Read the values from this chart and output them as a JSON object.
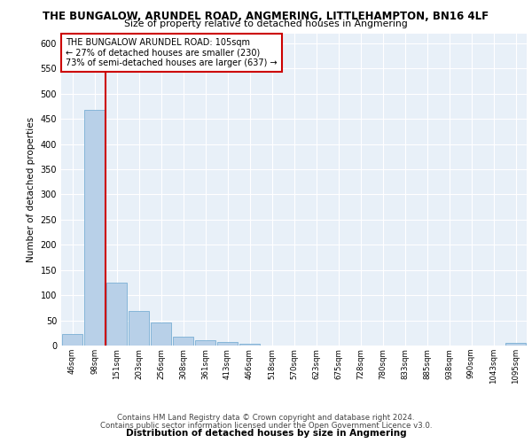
{
  "title_line1": "THE BUNGALOW, ARUNDEL ROAD, ANGMERING, LITTLEHAMPTON, BN16 4LF",
  "title_line2": "Size of property relative to detached houses in Angmering",
  "xlabel": "Distribution of detached houses by size in Angmering",
  "ylabel": "Number of detached properties",
  "bar_color": "#b8d0e8",
  "bar_edge_color": "#7aafd4",
  "annotation_box_color": "#cc0000",
  "vline_color": "#cc0000",
  "annotation_text": "THE BUNGALOW ARUNDEL ROAD: 105sqm\n← 27% of detached houses are smaller (230)\n73% of semi-detached houses are larger (637) →",
  "categories": [
    "46sqm",
    "98sqm",
    "151sqm",
    "203sqm",
    "256sqm",
    "308sqm",
    "361sqm",
    "413sqm",
    "466sqm",
    "518sqm",
    "570sqm",
    "623sqm",
    "675sqm",
    "728sqm",
    "780sqm",
    "833sqm",
    "885sqm",
    "938sqm",
    "990sqm",
    "1043sqm",
    "1095sqm"
  ],
  "bar_heights": [
    22,
    467,
    125,
    68,
    45,
    18,
    10,
    7,
    4,
    0,
    0,
    0,
    0,
    0,
    0,
    0,
    0,
    0,
    0,
    0,
    6
  ],
  "ylim": [
    0,
    620
  ],
  "yticks": [
    0,
    50,
    100,
    150,
    200,
    250,
    300,
    350,
    400,
    450,
    500,
    550,
    600
  ],
  "background_color": "#e8f0f8",
  "footer_text1": "Contains HM Land Registry data © Crown copyright and database right 2024.",
  "footer_text2": "Contains public sector information licensed under the Open Government Licence v3.0."
}
